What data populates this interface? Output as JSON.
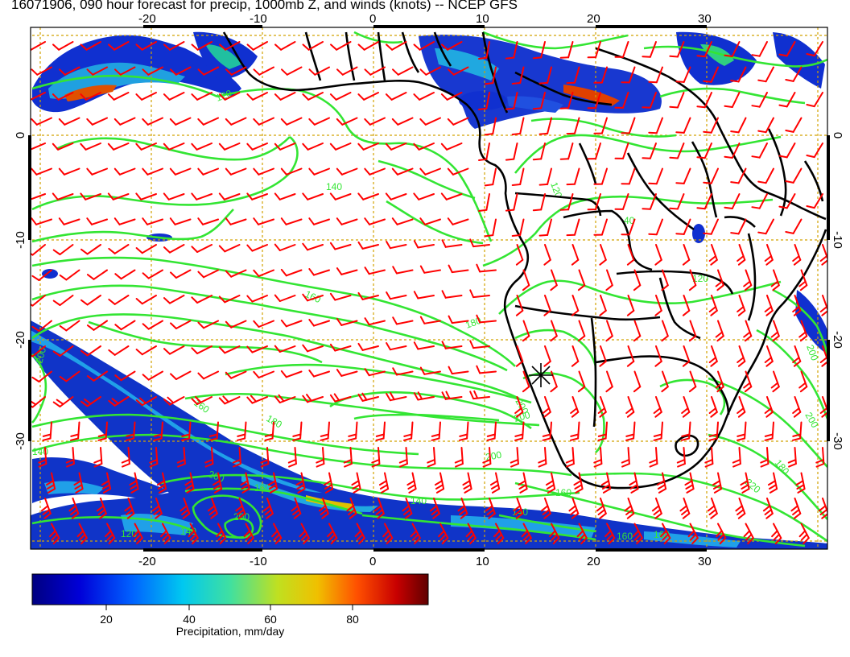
{
  "title": "16071906, 090 hour forecast for precip, 1000mb Z, and winds (knots) -- NCEP GFS",
  "map": {
    "lon_range": [
      -30,
      41.5
    ],
    "lat_range": [
      -41,
      10
    ],
    "x_ticks": [
      -20,
      -10,
      0,
      10,
      20,
      30
    ],
    "x_tick_labels": [
      "-20",
      "-10",
      "0",
      "10",
      "20",
      "30"
    ],
    "y_ticks": [
      0,
      -10,
      -20,
      -30
    ],
    "y_tick_labels": [
      "0",
      "-10",
      "-20",
      "-30"
    ],
    "grid": true,
    "colors": {
      "contour": "#33e533",
      "wind_barb": "#ff0000",
      "grid": "#d2a200",
      "coast": "#000000"
    },
    "contour_labels": [
      "120",
      "140",
      "160",
      "180",
      "200",
      "160",
      "140",
      "140",
      "180",
      "200",
      "200",
      "200",
      "160",
      "200",
      "220",
      "180",
      "200",
      "200",
      "160",
      "160",
      "120",
      "140",
      "40",
      "120",
      "140",
      "160",
      "200",
      "120"
    ],
    "station_marker": "asterisk-icon"
  },
  "colorbar": {
    "range": [
      0,
      100
    ],
    "ticks": [
      20,
      40,
      60,
      80
    ],
    "tick_labels": [
      "20",
      "40",
      "60",
      "80"
    ],
    "label": "Precipitation, mm/day",
    "colors": [
      "#000080",
      "#0000d0",
      "#0040ff",
      "#0090ff",
      "#00d0e0",
      "#40e0a0",
      "#a0e040",
      "#e0d000",
      "#ff8000",
      "#e02000",
      "#b00000",
      "#600000"
    ]
  }
}
